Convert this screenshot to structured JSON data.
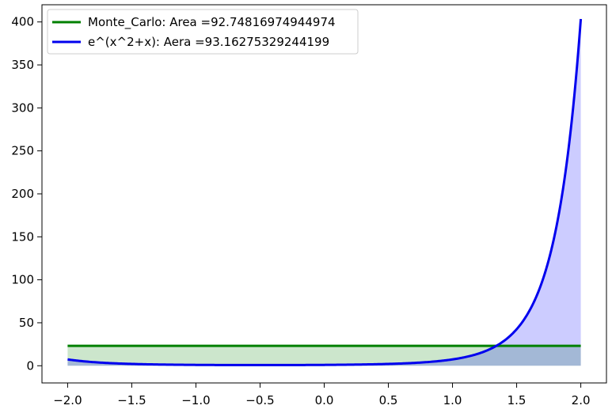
{
  "chart_data": {
    "type": "area",
    "x_range": [
      -2.0,
      2.0
    ],
    "xlim": [
      -2.2,
      2.2
    ],
    "ylim": [
      -20,
      420
    ],
    "xticks": [
      -2.0,
      -1.5,
      -1.0,
      -0.5,
      0.0,
      0.5,
      1.0,
      1.5,
      2.0
    ],
    "xtick_labels": [
      "−2.0",
      "−1.5",
      "−1.0",
      "−0.5",
      "0.0",
      "0.5",
      "1.0",
      "1.5",
      "2.0"
    ],
    "yticks": [
      0,
      50,
      100,
      150,
      200,
      250,
      300,
      350,
      400
    ],
    "ytick_labels": [
      "0",
      "50",
      "100",
      "150",
      "200",
      "250",
      "300",
      "350",
      "400"
    ],
    "grid": false,
    "legend_position": "top-left",
    "series": [
      {
        "name": "Monte_Carlo: Area =92.74816974944974",
        "kind": "constant",
        "y": 23.19,
        "color": "#008000",
        "fill_color": "#008000",
        "fill_opacity": 0.2
      },
      {
        "name": "e^(x^2+x): Aera =93.16275329244199",
        "kind": "function",
        "formula": "exp(x^2+x)",
        "color": "#0000ee",
        "fill_color": "#0000ff",
        "fill_opacity": 0.2
      }
    ]
  }
}
